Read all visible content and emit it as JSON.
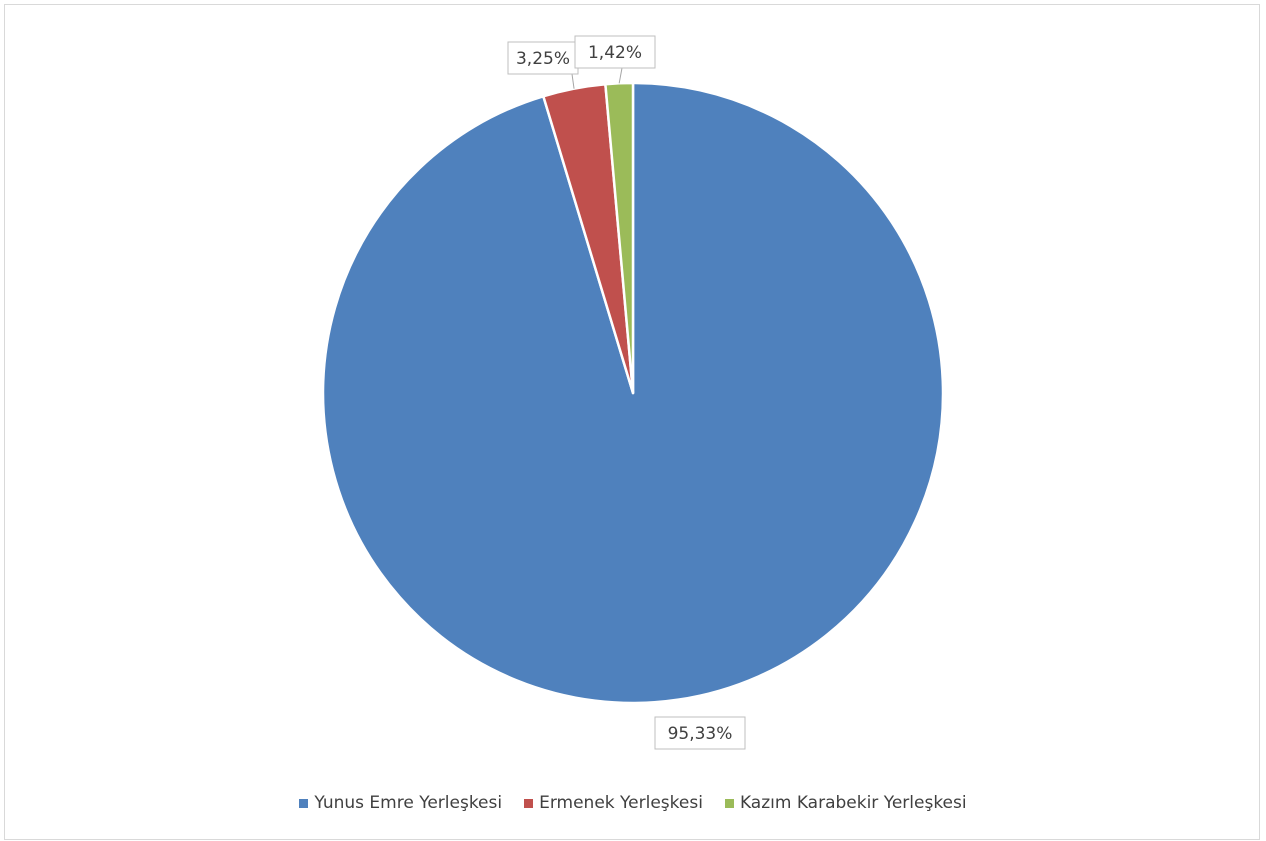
{
  "chart_data": {
    "type": "pie",
    "title": "",
    "categories": [
      "Yunus Emre Yerleşkesi",
      "Ermenek Yerleşkesi",
      "Kazım Karabekir Yerleşkesi"
    ],
    "values": [
      95.33,
      3.25,
      1.42
    ],
    "value_labels": [
      "95,33%",
      "3,25%",
      "1,42%"
    ],
    "colors": [
      "#4f81bd",
      "#c0504d",
      "#9bbb59"
    ],
    "legend_position": "bottom",
    "start_angle": "12 o'clock",
    "direction": "clockwise"
  },
  "legend": {
    "items": [
      {
        "label": "Yunus Emre Yerleşkesi",
        "color": "#4f81bd"
      },
      {
        "label": "Ermenek Yerleşkesi",
        "color": "#c0504d"
      },
      {
        "label": "Kazım Karabekir Yerleşkesi",
        "color": "#9bbb59"
      }
    ]
  }
}
